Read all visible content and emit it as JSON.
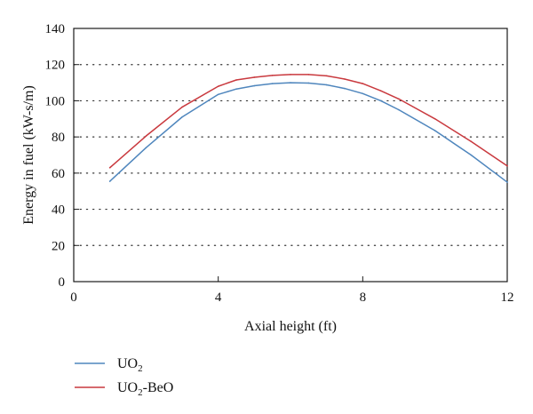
{
  "chart_data": {
    "type": "line",
    "title": "",
    "xlabel": "Axial height (ft)",
    "ylabel": "Energy in fuel (kW-s/m)",
    "xlim": [
      0,
      12
    ],
    "ylim": [
      0,
      140
    ],
    "xticks": [
      0,
      4,
      8,
      12
    ],
    "yticks": [
      0,
      20,
      40,
      60,
      80,
      100,
      120,
      140
    ],
    "grid": "horizontal dotted",
    "legend_position": "bottom-left",
    "series": [
      {
        "name_main": "UO",
        "name_sub": "2",
        "name_suffix": "",
        "color": "#4f86bd",
        "x": [
          1,
          2,
          3,
          4,
          4.5,
          5,
          5.5,
          6,
          6.5,
          7,
          7.5,
          8,
          8.5,
          9,
          10,
          11,
          12
        ],
        "y": [
          55.5,
          74,
          91,
          103.5,
          106.5,
          108.3,
          109.5,
          110,
          109.8,
          108.8,
          106.8,
          104,
          100,
          95,
          83.5,
          70,
          55
        ]
      },
      {
        "name_main": "UO",
        "name_sub": "2",
        "name_suffix": "-BeO",
        "color": "#c9393e",
        "x": [
          1,
          2,
          3,
          4,
          4.5,
          5,
          5.5,
          6,
          6.5,
          7,
          7.5,
          8,
          8.5,
          9,
          10,
          11,
          12
        ],
        "y": [
          63,
          80.5,
          96.5,
          108,
          111.5,
          113,
          114,
          114.5,
          114.5,
          113.8,
          112,
          109.5,
          105.5,
          101,
          90,
          77.5,
          64
        ]
      }
    ]
  }
}
